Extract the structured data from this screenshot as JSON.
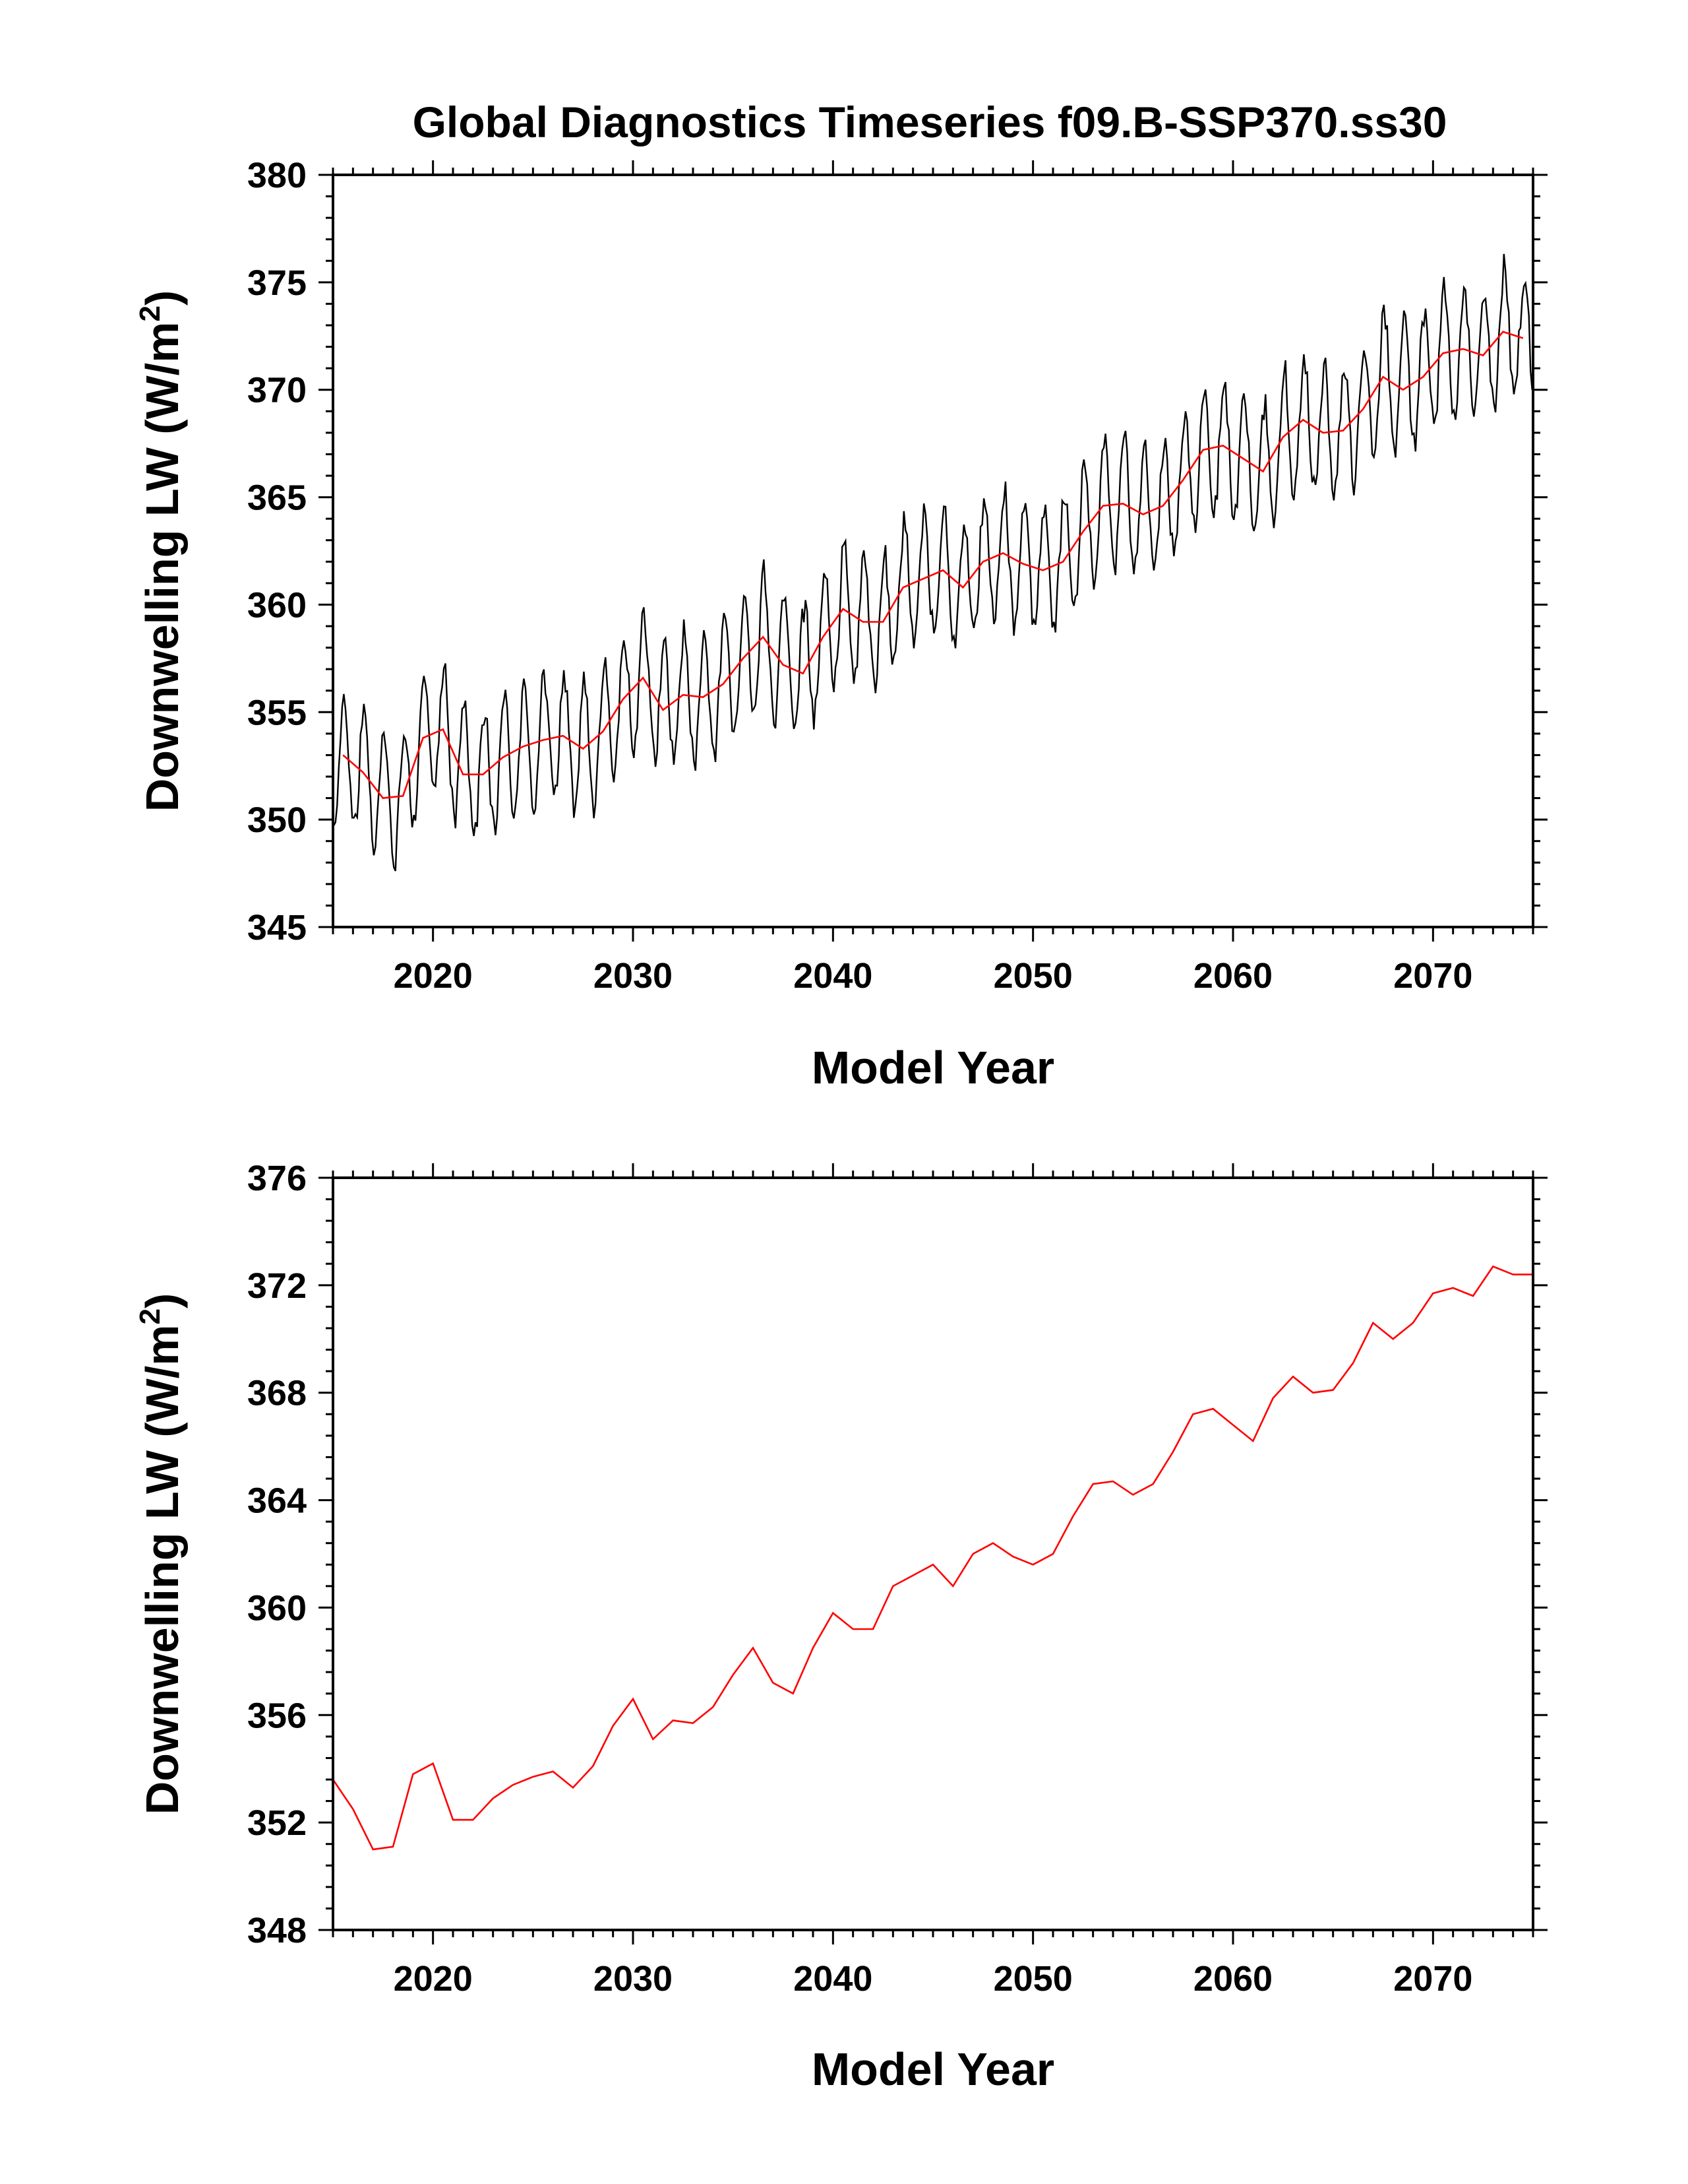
{
  "title": "Global Diagnostics Timeseries f09.B-SSP370.ss30",
  "colors": {
    "monthly": "#000000",
    "annual": "#ff0000",
    "axes": "#000000",
    "background": "#ffffff"
  },
  "chart_data": [
    {
      "type": "line",
      "title": "Global Diagnostics Timeseries f09.B-SSP370.ss30",
      "xlabel": "Model Year",
      "ylabel_main": "Downwelling LW (W/m",
      "ylabel_sup": "2",
      "ylabel_close": ")",
      "xlim": [
        2015,
        2075
      ],
      "ylim": [
        345,
        380
      ],
      "xticks": [
        2020,
        2030,
        2040,
        2050,
        2060,
        2070
      ],
      "yticks": [
        345,
        350,
        355,
        360,
        365,
        370,
        375,
        380
      ],
      "xtick_labels": [
        "2020",
        "2030",
        "2040",
        "2050",
        "2060",
        "2070"
      ],
      "ytick_labels": [
        "345",
        "350",
        "355",
        "360",
        "365",
        "370",
        "375",
        "380"
      ],
      "grid": false,
      "legend": "none",
      "series": [
        {
          "kind": "monthly",
          "color": "#000000",
          "seasonal_amplitude": 3.0,
          "note_values": "monthly values = annual mean + seasonal cycle (peaks mid-year, troughs near year start), amplitude about 3 W/m2"
        },
        {
          "kind": "annual-mean",
          "color": "#ff0000",
          "x": [
            2015.5,
            2016.5,
            2017.5,
            2018.5,
            2019.5,
            2020.5,
            2021.5,
            2022.5,
            2023.5,
            2024.5,
            2025.5,
            2026.5,
            2027.5,
            2028.5,
            2029.5,
            2030.5,
            2031.5,
            2032.5,
            2033.5,
            2034.5,
            2035.5,
            2036.5,
            2037.5,
            2038.5,
            2039.5,
            2040.5,
            2041.5,
            2042.5,
            2043.5,
            2044.5,
            2045.5,
            2046.5,
            2047.5,
            2048.5,
            2049.5,
            2050.5,
            2051.5,
            2052.5,
            2053.5,
            2054.5,
            2055.5,
            2056.5,
            2057.5,
            2058.5,
            2059.5,
            2060.5,
            2061.5,
            2062.5,
            2063.5,
            2064.5,
            2065.5,
            2066.5,
            2067.5,
            2068.5,
            2069.5,
            2070.5,
            2071.5,
            2072.5,
            2073.5,
            2074.5
          ],
          "values": [
            353.0,
            352.2,
            351.0,
            351.1,
            353.8,
            354.2,
            352.1,
            352.1,
            352.9,
            353.4,
            353.7,
            353.9,
            353.3,
            354.1,
            355.6,
            356.6,
            355.1,
            355.8,
            355.7,
            356.3,
            357.5,
            358.5,
            357.2,
            356.8,
            358.5,
            359.8,
            359.2,
            359.2,
            360.8,
            361.2,
            361.6,
            360.8,
            362.0,
            362.4,
            361.9,
            361.6,
            362.0,
            363.4,
            364.6,
            364.7,
            364.2,
            364.6,
            365.8,
            367.2,
            367.4,
            366.8,
            366.2,
            367.8,
            368.6,
            368.0,
            368.1,
            369.1,
            370.6,
            370.0,
            370.6,
            371.7,
            371.9,
            371.6,
            372.7,
            372.4
          ]
        }
      ]
    },
    {
      "type": "line",
      "title": "",
      "xlabel": "Model Year",
      "ylabel_main": "Downwelling LW (W/m",
      "ylabel_sup": "2",
      "ylabel_close": ")",
      "xlim": [
        2015,
        2075
      ],
      "ylim": [
        348,
        376
      ],
      "xticks": [
        2020,
        2030,
        2040,
        2050,
        2060,
        2070
      ],
      "yticks": [
        348,
        352,
        356,
        360,
        364,
        368,
        372,
        376
      ],
      "xtick_labels": [
        "2020",
        "2030",
        "2040",
        "2050",
        "2060",
        "2070"
      ],
      "ytick_labels": [
        "348",
        "352",
        "356",
        "360",
        "364",
        "368",
        "372",
        "376"
      ],
      "grid": false,
      "legend": "none",
      "series": [
        {
          "kind": "annual-mean",
          "color": "#ff0000",
          "x": [
            2015,
            2016,
            2017,
            2018,
            2019,
            2020,
            2021,
            2022,
            2023,
            2024,
            2025,
            2026,
            2027,
            2028,
            2029,
            2030,
            2031,
            2032,
            2033,
            2034,
            2035,
            2036,
            2037,
            2038,
            2039,
            2040,
            2041,
            2042,
            2043,
            2044,
            2045,
            2046,
            2047,
            2048,
            2049,
            2050,
            2051,
            2052,
            2053,
            2054,
            2055,
            2056,
            2057,
            2058,
            2059,
            2060,
            2061,
            2062,
            2063,
            2064,
            2065,
            2066,
            2067,
            2068,
            2069,
            2070,
            2071,
            2072,
            2073,
            2074,
            2075
          ],
          "values": [
            353.6,
            352.5,
            351.0,
            351.1,
            353.8,
            354.2,
            352.1,
            352.1,
            352.9,
            353.4,
            353.7,
            353.9,
            353.3,
            354.1,
            355.6,
            356.6,
            355.1,
            355.8,
            355.7,
            356.3,
            357.5,
            358.5,
            357.2,
            356.8,
            358.5,
            359.8,
            359.2,
            359.2,
            360.8,
            361.2,
            361.6,
            360.8,
            362.0,
            362.4,
            361.9,
            361.6,
            362.0,
            363.4,
            364.6,
            364.7,
            364.2,
            364.6,
            365.8,
            367.2,
            367.4,
            366.8,
            366.2,
            367.8,
            368.6,
            368.0,
            368.1,
            369.1,
            370.6,
            370.0,
            370.6,
            371.7,
            371.9,
            371.6,
            372.7,
            372.4,
            372.4
          ]
        }
      ]
    }
  ]
}
